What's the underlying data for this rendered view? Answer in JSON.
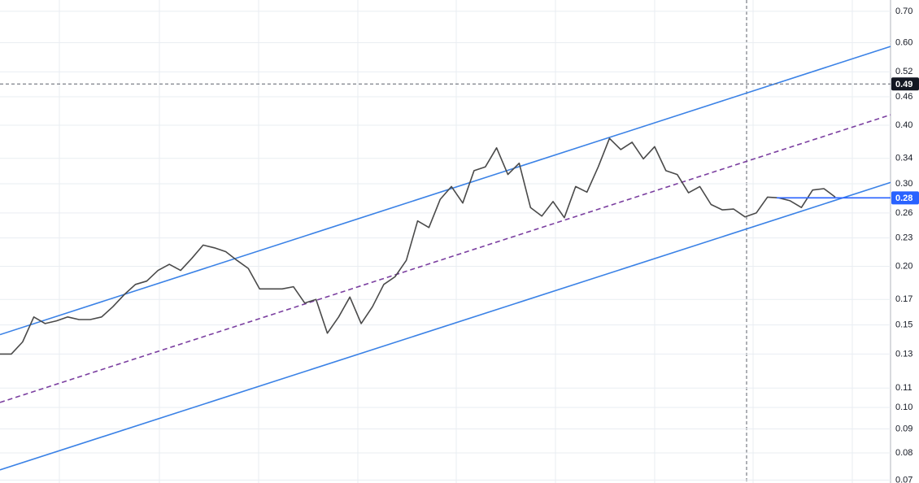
{
  "chart_data": {
    "type": "line",
    "log_scale": true,
    "grid": true,
    "ylim": [
      0.069,
      0.74
    ],
    "yticks": [
      {
        "value": 0.7,
        "label": "0.70"
      },
      {
        "value": 0.6,
        "label": "0.60"
      },
      0.52,
      0.46,
      {
        "value": 0.4,
        "label": "0.40"
      },
      0.34,
      {
        "value": 0.3,
        "label": "0.30"
      },
      0.26,
      0.23,
      {
        "value": 0.2,
        "label": "0.20"
      },
      0.17,
      0.15,
      0.13,
      0.11,
      {
        "value": 0.1,
        "label": "0.10"
      },
      0.09,
      0.08,
      0.07
    ],
    "series": [
      {
        "color": "#4a4a4a",
        "values": [
          0.13,
          0.13,
          0.138,
          0.156,
          0.151,
          0.153,
          0.156,
          0.154,
          0.154,
          0.156,
          0.164,
          0.174,
          0.183,
          0.186,
          0.196,
          0.202,
          0.196,
          0.208,
          0.222,
          0.219,
          0.215,
          0.206,
          0.198,
          0.179,
          0.179,
          0.179,
          0.181,
          0.167,
          0.17,
          0.144,
          0.156,
          0.172,
          0.151,
          0.164,
          0.183,
          0.19,
          0.206,
          0.25,
          0.242,
          0.278,
          0.296,
          0.273,
          0.32,
          0.326,
          0.358,
          0.314,
          0.332,
          0.267,
          0.256,
          0.275,
          0.254,
          0.296,
          0.288,
          0.326,
          0.375,
          0.355,
          0.368,
          0.339,
          0.36,
          0.32,
          0.314,
          0.287,
          0.296,
          0.271,
          0.264,
          0.265,
          0.255,
          0.26,
          0.281,
          0.28,
          0.276,
          0.267,
          0.291,
          0.293,
          0.281
        ]
      }
    ],
    "channels": [
      {
        "color": "#3b82e6",
        "dashed": false,
        "start": 0.143,
        "end": 0.589
      },
      {
        "color": "#7b3fa0",
        "dashed": true,
        "start": 0.1025,
        "end": 0.421
      },
      {
        "color": "#3b82e6",
        "dashed": false,
        "start": 0.0736,
        "end": 0.302
      }
    ],
    "crosshair": {
      "value": 0.49,
      "color": "#131722"
    },
    "last_price": {
      "value": 0.28,
      "color": "#2962ff"
    }
  }
}
